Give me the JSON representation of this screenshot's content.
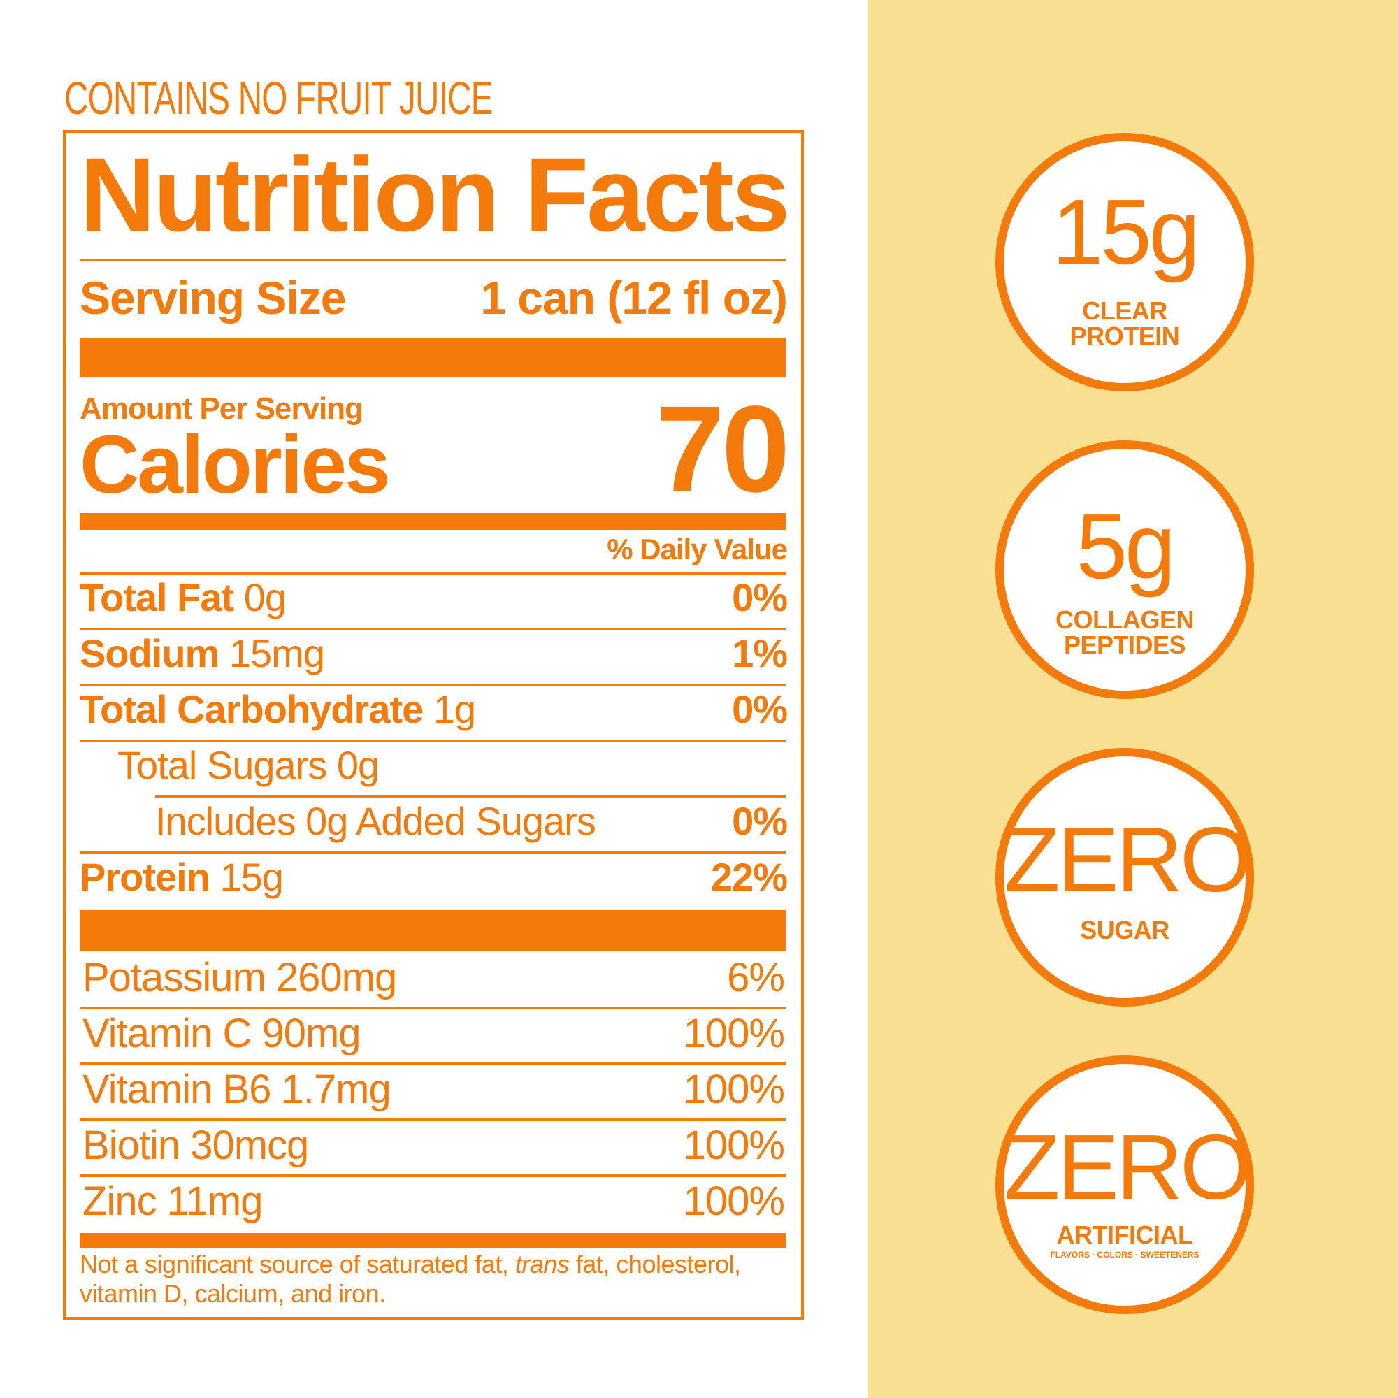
{
  "tagline": "CONTAINS NO FRUIT JUICE",
  "label": {
    "title": "Nutrition Facts",
    "serving_size_label": "Serving Size",
    "serving_size_value": "1 can (12 fl oz)",
    "amount_per_serving": "Amount Per Serving",
    "calories_label": "Calories",
    "calories_value": "70",
    "daily_value_header": "% Daily Value",
    "nutrients": [
      {
        "name": "Total Fat",
        "amount": "0g",
        "dv": "0%"
      },
      {
        "name": "Sodium",
        "amount": "15mg",
        "dv": "1%"
      },
      {
        "name": "Total Carbohydrate",
        "amount": "1g",
        "dv": "0%"
      },
      {
        "name": "Total Sugars 0g",
        "amount": "",
        "dv": ""
      },
      {
        "name": "Includes 0g Added Sugars",
        "amount": "",
        "dv": "0%"
      },
      {
        "name": "Protein",
        "amount": "15g",
        "dv": "22%"
      }
    ],
    "minerals": [
      {
        "text": "Potassium 260mg",
        "dv": "6%"
      },
      {
        "text": "Vitamin C 90mg",
        "dv": "100%"
      },
      {
        "text": "Vitamin B6 1.7mg",
        "dv": "100%"
      },
      {
        "text": "Biotin 30mcg",
        "dv": "100%"
      },
      {
        "text": "Zinc 11mg",
        "dv": "100%"
      }
    ],
    "footnote_part1": "Not a significant source of saturated fat, ",
    "footnote_italic": "trans",
    "footnote_part2": " fat, cholesterol, vitamin D, calcium, and iron."
  },
  "badges": [
    {
      "big": "15g",
      "line1": "CLEAR",
      "line2": "PROTEIN"
    },
    {
      "big": "5g",
      "line1": "COLLAGEN",
      "line2": "PEPTIDES"
    },
    {
      "big": "ZERO",
      "line1": "SUGAR",
      "line2": ""
    },
    {
      "big": "ZERO",
      "line1": "ARTIFICIAL",
      "line2": "FLAVORS · COLORS · SWEETENERS"
    }
  ],
  "colors": {
    "accent": "#f47a0c",
    "panel": "#f8df91",
    "background": "#ffffff"
  }
}
